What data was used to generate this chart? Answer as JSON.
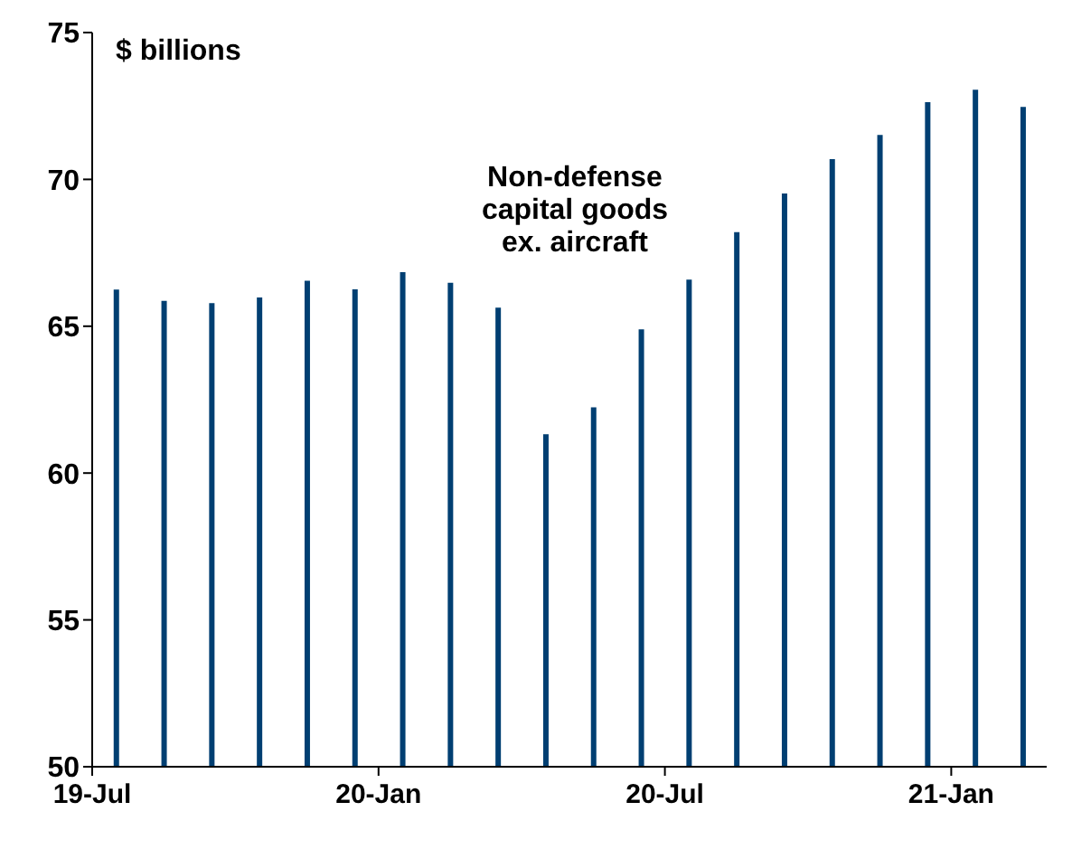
{
  "chart_data": {
    "type": "bar",
    "ylabel": "$ billions",
    "annotations": [
      "Non-defense\ncapital goods\nex. aircraft"
    ],
    "categories": [
      "19-Jul",
      null,
      null,
      null,
      null,
      null,
      "20-Jan",
      null,
      null,
      null,
      null,
      null,
      "20-Jul",
      null,
      null,
      null,
      null,
      null,
      "21-Jan",
      null
    ],
    "values": [
      66.25,
      65.86,
      65.79,
      65.98,
      66.55,
      66.26,
      66.84,
      66.48,
      65.63,
      61.32,
      62.24,
      64.89,
      66.59,
      68.2,
      69.52,
      70.69,
      71.51,
      72.63,
      73.05,
      72.47
    ],
    "color": "#003f72",
    "ylim": [
      50,
      75
    ],
    "yticks": [
      50,
      55,
      60,
      65,
      70,
      75
    ],
    "grid": false
  }
}
